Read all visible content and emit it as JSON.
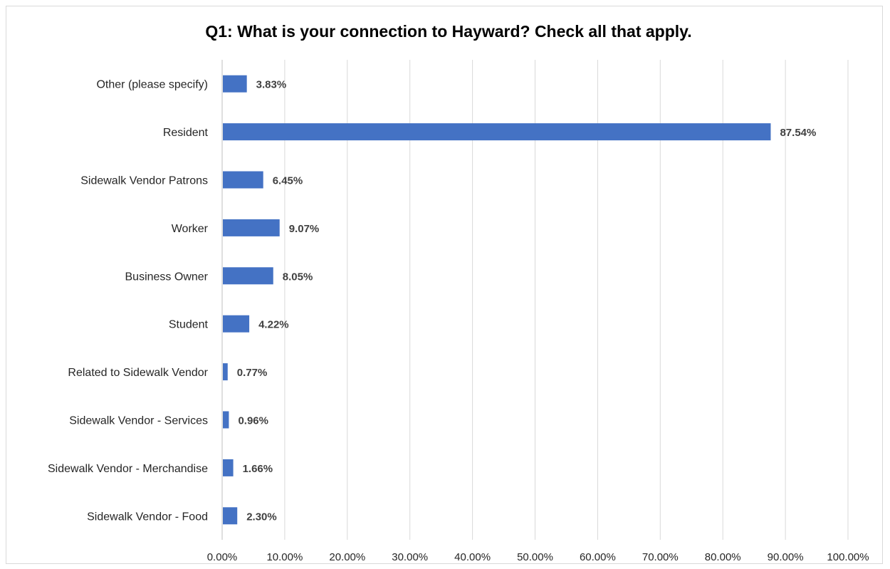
{
  "chart_data": {
    "type": "bar",
    "orientation": "horizontal",
    "title": "Q1: What is your connection to Hayward? Check all that apply.",
    "xlabel": "",
    "ylabel": "",
    "xlim": [
      0,
      100
    ],
    "x_ticks": [
      "0.00%",
      "10.00%",
      "20.00%",
      "30.00%",
      "40.00%",
      "50.00%",
      "60.00%",
      "70.00%",
      "80.00%",
      "90.00%",
      "100.00%"
    ],
    "grid": "vertical",
    "bar_color": "#4472c4",
    "categories": [
      "Other (please specify)",
      "Resident",
      "Sidewalk Vendor Patrons",
      "Worker",
      "Business Owner",
      "Student",
      "Related to Sidewalk Vendor",
      "Sidewalk Vendor - Services",
      "Sidewalk Vendor - Merchandise",
      "Sidewalk Vendor - Food"
    ],
    "values": [
      3.83,
      87.54,
      6.45,
      9.07,
      8.05,
      4.22,
      0.77,
      0.96,
      1.66,
      2.3
    ],
    "value_labels": [
      "3.83%",
      "87.54%",
      "6.45%",
      "9.07%",
      "8.05%",
      "4.22%",
      "0.77%",
      "0.96%",
      "1.66%",
      "2.30%"
    ]
  }
}
